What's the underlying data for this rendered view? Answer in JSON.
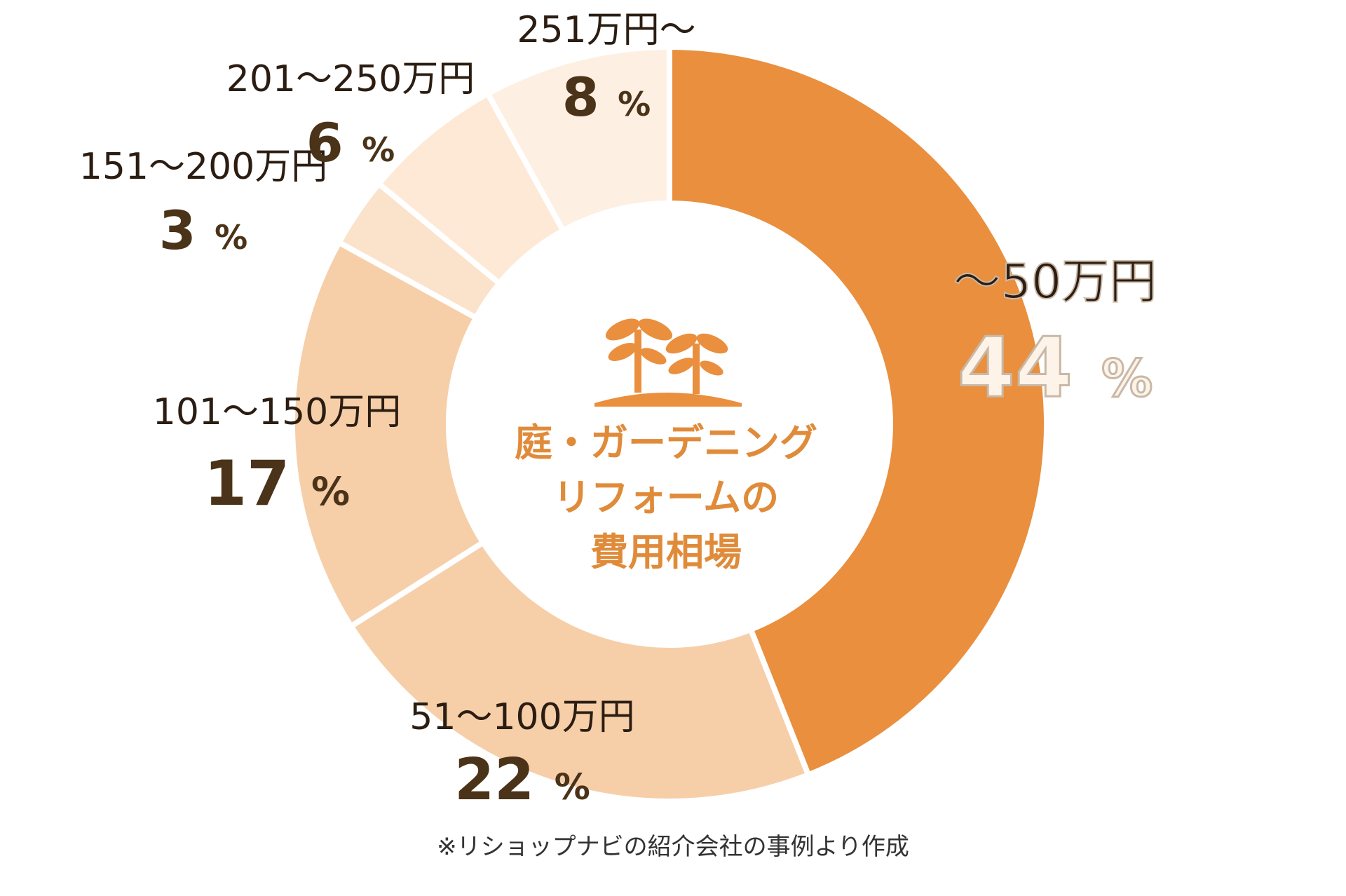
{
  "chart_data": {
    "type": "pie",
    "style": "donut",
    "center_title": [
      "庭・ガーデニング",
      "リフォームの",
      "費用相場"
    ],
    "center_icon": "sprouts-icon",
    "slices": [
      {
        "label": "～50万円",
        "value": 44,
        "value_text": "44",
        "pct_sign": "%",
        "color": "#e98f3e"
      },
      {
        "label": "51～100万円",
        "value": 22,
        "value_text": "22",
        "pct_sign": "%",
        "color": "#f6cfa9"
      },
      {
        "label": "101～150万円",
        "value": 17,
        "value_text": "17",
        "pct_sign": "%",
        "color": "#f6cfa9"
      },
      {
        "label": "151～200万円",
        "value": 3,
        "value_text": "3",
        "pct_sign": "%",
        "color": "#fbe2cb"
      },
      {
        "label": "201～250万円",
        "value": 6,
        "value_text": "6",
        "pct_sign": "%",
        "color": "#fde9d6"
      },
      {
        "label": "251万円～",
        "value": 8,
        "value_text": "8",
        "pct_sign": "%",
        "color": "#fdf0e3"
      }
    ],
    "accent_color": "#e98f3e",
    "center_text_color": "#e08b3a",
    "footnote": "※リショップナビの紹介会社の事例より作成"
  }
}
